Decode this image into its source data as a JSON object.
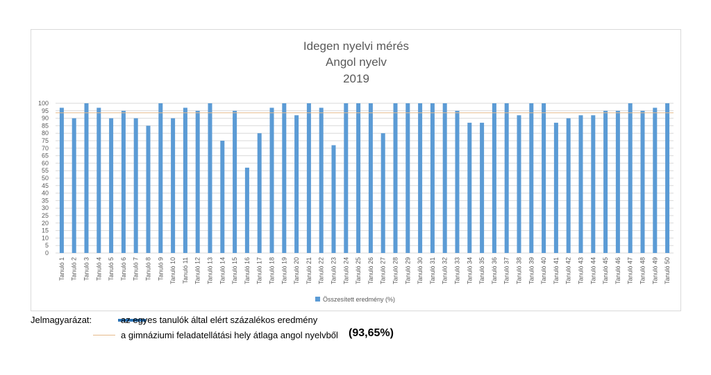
{
  "chart_data": {
    "type": "bar",
    "title_lines": [
      "Idegen nyelvi mérés",
      "Angol nyelv",
      "2019"
    ],
    "categories": [
      "Tanuló 1",
      "Tanuló 2",
      "Tanuló 3",
      "Tanuló 4",
      "Tanuló 5",
      "Tanuló 6",
      "Tanuló 7",
      "Tanuló 8",
      "Tanuló 9",
      "Tanuló 10",
      "Tanuló 11",
      "Tanuló 12",
      "Tanuló 13",
      "Tanuló 14",
      "Tanuló 15",
      "Tanuló 16",
      "Tanuló 17",
      "Tanuló 18",
      "Tanuló 19",
      "Tanuló 20",
      "Tanuló 21",
      "Tanuló 22",
      "Tanuló 23",
      "Tanuló 24",
      "Tanuló 25",
      "Tanuló 26",
      "Tanuló 27",
      "Tanuló 28",
      "Tanuló 29",
      "Tanuló 30",
      "Tanuló 31",
      "Tanuló 32",
      "Tanuló 33",
      "Tanuló 34",
      "Tanuló 35",
      "Tanuló 36",
      "Tanuló 37",
      "Tanuló 38",
      "Tanuló 39",
      "Tanuló 40",
      "Tanuló 41",
      "Tanuló 42",
      "Tanuló 43",
      "Tanuló 44",
      "Tanuló 45",
      "Tanuló 46",
      "Tanuló 47",
      "Tanuló 48",
      "Tanuló 49",
      "Tanuló 50"
    ],
    "series": [
      {
        "name": "Összesített eredmény (%)",
        "color": "#5b9bd5",
        "values": [
          97,
          90,
          100,
          97,
          90,
          95,
          90,
          85,
          100,
          90,
          97,
          95,
          100,
          75,
          95,
          57,
          80,
          97,
          100,
          92,
          100,
          97,
          72,
          100,
          100,
          100,
          80,
          100,
          100,
          100,
          100,
          100,
          95,
          87,
          87,
          100,
          100,
          92,
          100,
          100,
          87,
          90,
          92,
          92,
          95,
          95,
          100,
          95,
          97,
          100
        ]
      }
    ],
    "average_line": {
      "value": 93.65,
      "color": "#e6b98a"
    },
    "ylim": [
      0,
      100
    ],
    "yticks": [
      0,
      5,
      10,
      15,
      20,
      25,
      30,
      35,
      40,
      45,
      50,
      55,
      60,
      65,
      70,
      75,
      80,
      85,
      90,
      95,
      100
    ],
    "grid": true,
    "legend_position": "bottom"
  },
  "legend": {
    "label": "Jelmagyarázat:",
    "bar_text": "az egyes tanulók által elért százalékos eredmény",
    "bar_color": "#2e75b6",
    "avg_text": "a gimnáziumi feladatellátási hely átlaga angol nyelvből",
    "avg_value": "(93,65%)"
  }
}
